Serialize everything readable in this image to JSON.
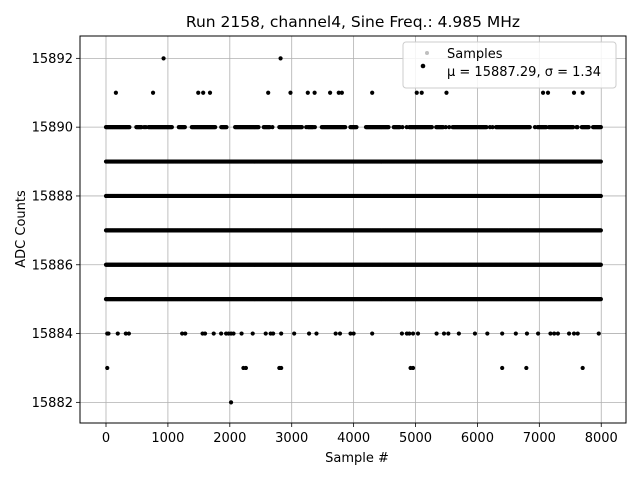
{
  "chart_data": {
    "type": "scatter",
    "title": "Run 2158, channel4, Sine Freq.: 4.985 MHz",
    "xlabel": "Sample #",
    "ylabel": "ADC Counts",
    "xlim": [
      -420,
      8400
    ],
    "ylim": [
      15881.4,
      15892.65
    ],
    "xticks": [
      "0",
      "1000",
      "2000",
      "3000",
      "4000",
      "5000",
      "6000",
      "7000",
      "8000"
    ],
    "yticks": [
      "15882",
      "15884",
      "15886",
      "15888",
      "15890",
      "15892"
    ],
    "grid": true,
    "legend": {
      "placement": "top-right",
      "entries": [
        {
          "label": "Samples",
          "color": "#bfbfbf"
        },
        {
          "label": "μ = 15887.29, σ = 1.34",
          "color": "#000000"
        }
      ]
    },
    "series": [
      {
        "name": "μ = 15887.29, σ = 1.34",
        "color": "#000000",
        "n_samples": 8000,
        "dense_levels": [
          15885,
          15886,
          15887,
          15888,
          15889
        ],
        "sparse_levels": [
          15890
        ],
        "outliers": [
          {
            "x": 20,
            "y": 15883
          },
          {
            "x": 2220,
            "y": 15883
          },
          {
            "x": 2260,
            "y": 15883
          },
          {
            "x": 2800,
            "y": 15883
          },
          {
            "x": 2830,
            "y": 15883
          },
          {
            "x": 4920,
            "y": 15883
          },
          {
            "x": 4960,
            "y": 15883
          },
          {
            "x": 6400,
            "y": 15883
          },
          {
            "x": 6790,
            "y": 15883
          },
          {
            "x": 7700,
            "y": 15883
          },
          {
            "x": 2020,
            "y": 15882
          },
          {
            "x": 930,
            "y": 15892
          },
          {
            "x": 2820,
            "y": 15892
          },
          {
            "x": 160,
            "y": 15891
          },
          {
            "x": 760,
            "y": 15891
          },
          {
            "x": 1490,
            "y": 15891
          },
          {
            "x": 1570,
            "y": 15891
          },
          {
            "x": 1680,
            "y": 15891
          },
          {
            "x": 2620,
            "y": 15891
          },
          {
            "x": 2980,
            "y": 15891
          },
          {
            "x": 3260,
            "y": 15891
          },
          {
            "x": 3370,
            "y": 15891
          },
          {
            "x": 3620,
            "y": 15891
          },
          {
            "x": 3760,
            "y": 15891
          },
          {
            "x": 3810,
            "y": 15891
          },
          {
            "x": 4300,
            "y": 15891
          },
          {
            "x": 5020,
            "y": 15891
          },
          {
            "x": 5100,
            "y": 15891
          },
          {
            "x": 5500,
            "y": 15891
          },
          {
            "x": 7060,
            "y": 15891
          },
          {
            "x": 7140,
            "y": 15891
          },
          {
            "x": 7560,
            "y": 15891
          },
          {
            "x": 7700,
            "y": 15891
          },
          {
            "x": 20,
            "y": 15884
          },
          {
            "x": 40,
            "y": 15884
          },
          {
            "x": 190,
            "y": 15884
          },
          {
            "x": 320,
            "y": 15884
          },
          {
            "x": 370,
            "y": 15884
          },
          {
            "x": 1230,
            "y": 15884
          },
          {
            "x": 1280,
            "y": 15884
          },
          {
            "x": 1560,
            "y": 15884
          },
          {
            "x": 1600,
            "y": 15884
          },
          {
            "x": 1740,
            "y": 15884
          },
          {
            "x": 1860,
            "y": 15884
          },
          {
            "x": 1940,
            "y": 15884
          },
          {
            "x": 1980,
            "y": 15884
          },
          {
            "x": 2020,
            "y": 15884
          },
          {
            "x": 2060,
            "y": 15884
          },
          {
            "x": 2190,
            "y": 15884
          },
          {
            "x": 2370,
            "y": 15884
          },
          {
            "x": 2580,
            "y": 15884
          },
          {
            "x": 2660,
            "y": 15884
          },
          {
            "x": 2700,
            "y": 15884
          },
          {
            "x": 2830,
            "y": 15884
          },
          {
            "x": 3040,
            "y": 15884
          },
          {
            "x": 3280,
            "y": 15884
          },
          {
            "x": 3400,
            "y": 15884
          },
          {
            "x": 3710,
            "y": 15884
          },
          {
            "x": 3780,
            "y": 15884
          },
          {
            "x": 3950,
            "y": 15884
          },
          {
            "x": 4000,
            "y": 15884
          },
          {
            "x": 4300,
            "y": 15884
          },
          {
            "x": 4780,
            "y": 15884
          },
          {
            "x": 4860,
            "y": 15884
          },
          {
            "x": 4900,
            "y": 15884
          },
          {
            "x": 4960,
            "y": 15884
          },
          {
            "x": 5040,
            "y": 15884
          },
          {
            "x": 5340,
            "y": 15884
          },
          {
            "x": 5460,
            "y": 15884
          },
          {
            "x": 5530,
            "y": 15884
          },
          {
            "x": 5700,
            "y": 15884
          },
          {
            "x": 5960,
            "y": 15884
          },
          {
            "x": 6160,
            "y": 15884
          },
          {
            "x": 6400,
            "y": 15884
          },
          {
            "x": 6620,
            "y": 15884
          },
          {
            "x": 6800,
            "y": 15884
          },
          {
            "x": 6980,
            "y": 15884
          },
          {
            "x": 7180,
            "y": 15884
          },
          {
            "x": 7240,
            "y": 15884
          },
          {
            "x": 7300,
            "y": 15884
          },
          {
            "x": 7480,
            "y": 15884
          },
          {
            "x": 7560,
            "y": 15884
          },
          {
            "x": 7620,
            "y": 15884
          },
          {
            "x": 7960,
            "y": 15884
          }
        ]
      }
    ]
  }
}
